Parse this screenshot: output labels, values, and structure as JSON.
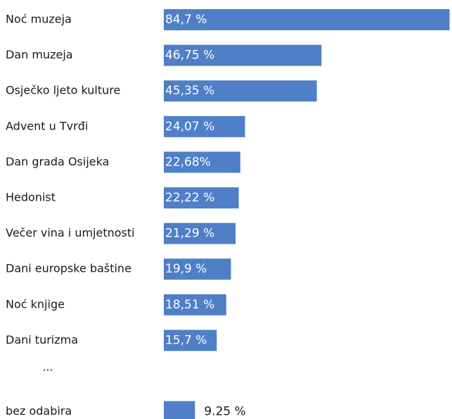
{
  "chart_data": {
    "type": "bar",
    "orientation": "horizontal",
    "color": "#4f7fc7",
    "categories": [
      "Noć muzeja",
      "Dan muzeja",
      "Osječko ljeto kulture",
      "Advent u Tvrđi",
      "Dan grada Osijeka",
      "Hedonist",
      "Večer vina i umjetnosti",
      "Dani europske baštine",
      "Noć knjige",
      "Dani turizma",
      "...",
      "bez odabira"
    ],
    "values": [
      84.7,
      46.75,
      45.35,
      24.07,
      22.68,
      22.22,
      21.29,
      19.9,
      18.51,
      15.7,
      null,
      9.25
    ],
    "value_labels": [
      "84,7 %",
      "46,75 %",
      "45,35 %",
      "24,07 %",
      "22,68%",
      "22,22 %",
      "21,29 %",
      "19,9 %",
      "18,51 %",
      "15,7 %",
      null,
      "9.25 %"
    ],
    "xlim": [
      0,
      85
    ]
  }
}
